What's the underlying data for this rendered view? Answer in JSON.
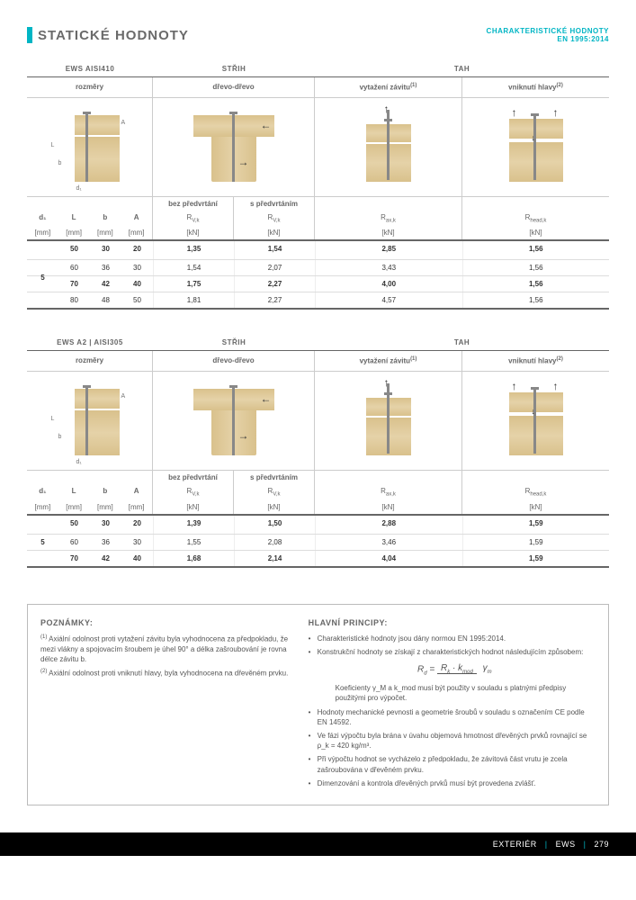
{
  "header": {
    "title": "STATICKÉ HODNOTY",
    "right1": "CHARAKTERISTICKÉ HODNOTY",
    "right2": "EN 1995:2014"
  },
  "categories": {
    "c1": "STŘIH",
    "c2": "TAH"
  },
  "labels": {
    "rozm": "rozměry",
    "drevo": "dřevo-dřevo",
    "vytaz": "vytažení závitu",
    "vnik": "vniknutí hlavy"
  },
  "subheads": {
    "bez": "bez předvrtání",
    "s": "s předvrtáním"
  },
  "cols": {
    "d1": "d₁",
    "L": "L",
    "b": "b",
    "A": "A",
    "u_mm": "[mm]",
    "rvk": "R",
    "rvk_sub": "V,k",
    "u_kn": "[kN]",
    "rax": "R",
    "rax_sub": "ax,k",
    "rhead": "R",
    "rhead_sub": "head,k"
  },
  "sup": {
    "one": "(1)",
    "two": "(2)"
  },
  "tables": [
    {
      "name": "EWS AISI410",
      "d1": "5",
      "rows": [
        {
          "L": "50",
          "b": "30",
          "A": "20",
          "rvk1": "1,35",
          "rvk2": "1,54",
          "rax": "2,85",
          "rhead": "1,56",
          "bold": true
        },
        {
          "L": "60",
          "b": "36",
          "A": "30",
          "rvk1": "1,54",
          "rvk2": "2,07",
          "rax": "3,43",
          "rhead": "1,56",
          "bold": false
        },
        {
          "L": "70",
          "b": "42",
          "A": "40",
          "rvk1": "1,75",
          "rvk2": "2,27",
          "rax": "4,00",
          "rhead": "1,56",
          "bold": true
        },
        {
          "L": "80",
          "b": "48",
          "A": "50",
          "rvk1": "1,81",
          "rvk2": "2,27",
          "rax": "4,57",
          "rhead": "1,56",
          "bold": false
        }
      ]
    },
    {
      "name": "EWS A2 | AISI305",
      "d1": "5",
      "rows": [
        {
          "L": "50",
          "b": "30",
          "A": "20",
          "rvk1": "1,39",
          "rvk2": "1,50",
          "rax": "2,88",
          "rhead": "1,59",
          "bold": true
        },
        {
          "L": "60",
          "b": "36",
          "A": "30",
          "rvk1": "1,55",
          "rvk2": "2,08",
          "rax": "3,46",
          "rhead": "1,59",
          "bold": false
        },
        {
          "L": "70",
          "b": "42",
          "A": "40",
          "rvk1": "1,68",
          "rvk2": "2,14",
          "rax": "4,04",
          "rhead": "1,59",
          "bold": true
        }
      ]
    }
  ],
  "notes": {
    "left_h": "POZNÁMKY:",
    "n1": "Axiální odolnost proti vytažení závitu byla vyhodnocena za předpokladu, že mezi vlákny a spojovacím šroubem je úhel 90° a délka zašroubování je rovna délce závitu b.",
    "n2": "Axiální odolnost proti vniknutí hlavy, byla vyhodnocena na dřevěném prvku.",
    "right_h": "HLAVNÍ PRINCIPY:",
    "p1": "Charakteristické hodnoty jsou dány normou EN 1995:2014.",
    "p2": "Konstrukční hodnoty se získají z charakteristických hodnot následujícím způsobem:",
    "p3": "Koeficienty γ_M a k_mod musí být použity v souladu s platnými předpisy použitými pro výpočet.",
    "p4": "Hodnoty mechanické pevnosti a geometrie šroubů v souladu s označením CE podle EN 14592.",
    "p5": "Ve fázi výpočtu byla brána v úvahu objemová hmotnost dřevěných prvků rovnající se ρ_k = 420 kg/m³.",
    "p6": "Při výpočtu hodnot se vycházelo z předpokladu, že závitová část vrutu je zcela zašroubována v dřevěném prvku.",
    "p7": "Dimenzování a kontrola dřevěných prvků musí být provedena zvlášť.",
    "formula": {
      "lhs": "R",
      "lhs_sub": "d",
      "top1": "R",
      "top1_sub": "k",
      "top2": "k",
      "top2_sub": "mod",
      "bot": "γ",
      "bot_sub": "m"
    }
  },
  "footer": {
    "a": "EXTERIÉR",
    "b": "EWS",
    "page": "279"
  },
  "dlabels": {
    "L": "L",
    "b": "b",
    "d1": "d₁",
    "A": "A"
  }
}
